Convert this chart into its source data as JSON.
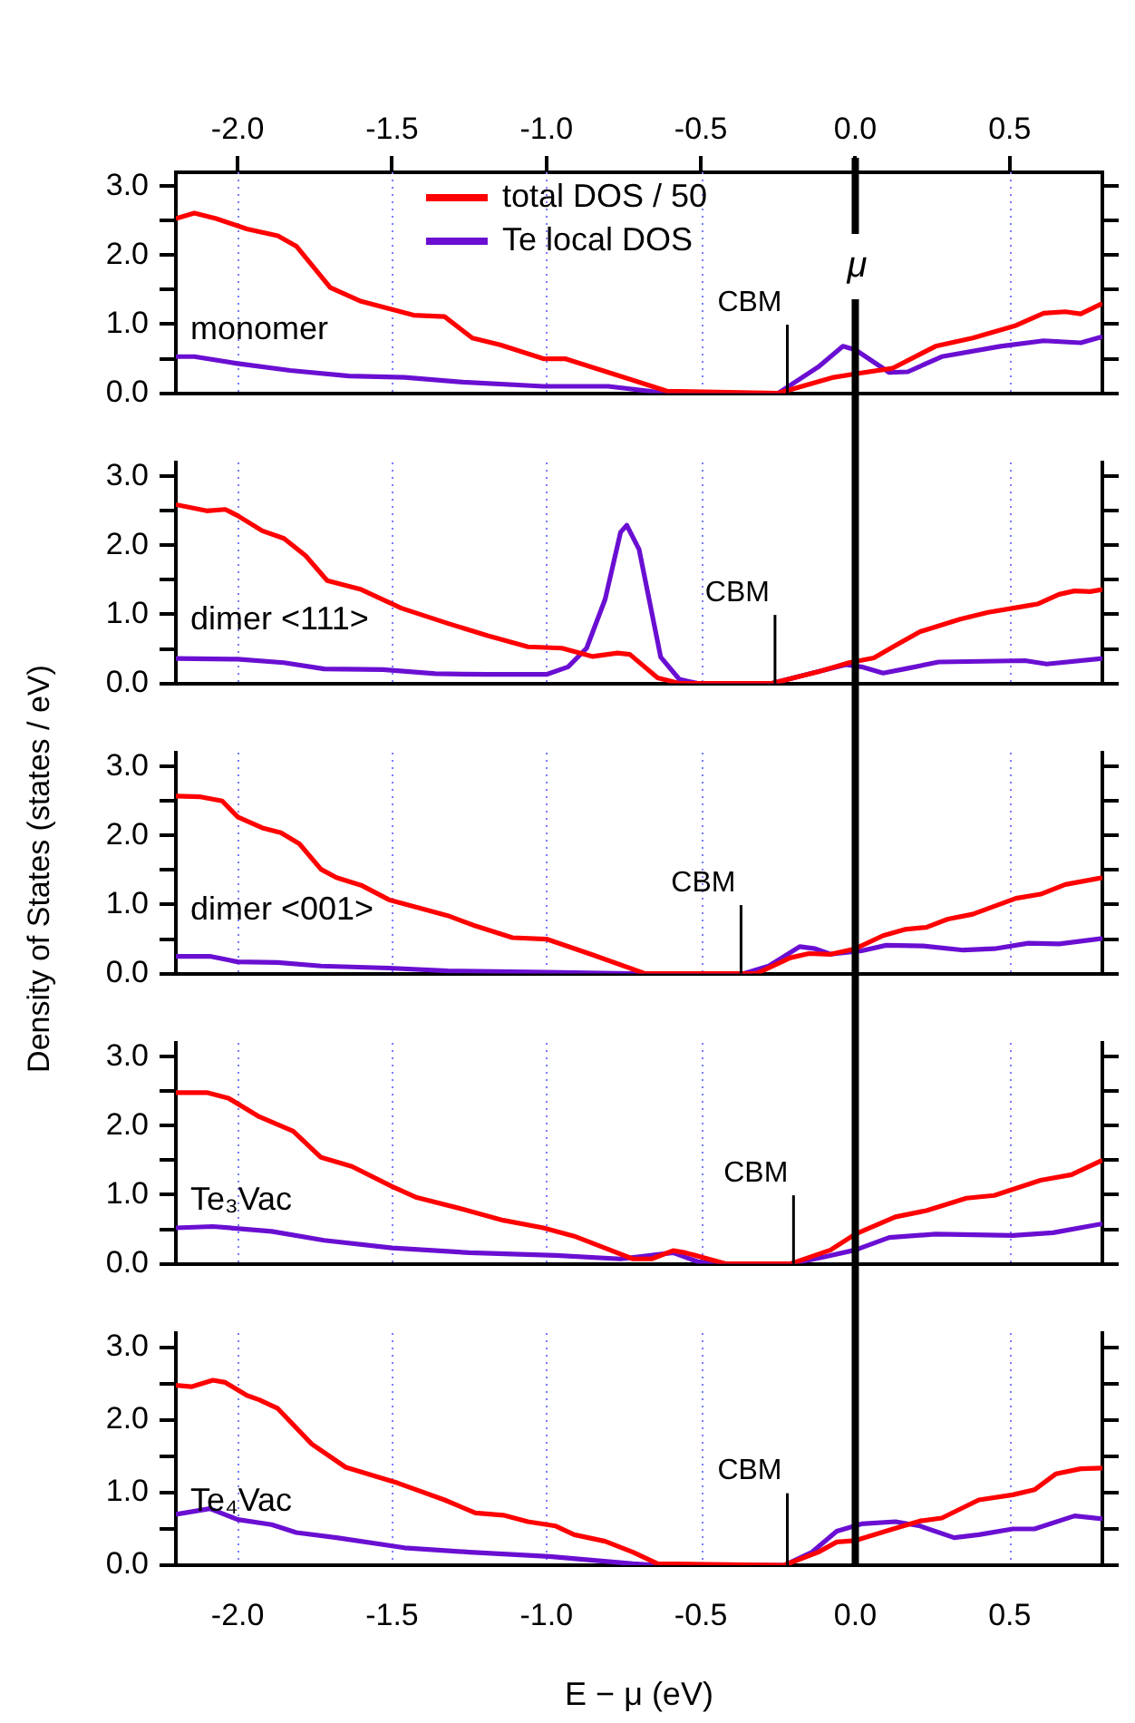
{
  "chart_data": [
    {
      "type": "line",
      "title": "monomer",
      "legend": "top",
      "grid": "x",
      "tick_labels": "y",
      "xlim": [
        -2.2,
        0.8
      ],
      "xticks": [
        {
          "value": -2,
          "label": null
        },
        {
          "value": -1.5,
          "label": null
        },
        {
          "value": -1,
          "label": null
        },
        {
          "value": -0.5,
          "label": null
        },
        {
          "value": 0,
          "label": null
        },
        {
          "value": 0.5,
          "label": null
        }
      ],
      "x2lim": [
        -2.2,
        0.8
      ],
      "x2ticks": [
        {
          "value": -2,
          "label": "-2.0"
        },
        {
          "value": -1.5,
          "label": "-1.5"
        },
        {
          "value": -1,
          "label": "-1.0"
        },
        {
          "value": -0.5,
          "label": "-0.5"
        },
        {
          "value": 0,
          "label": "0.0"
        },
        {
          "value": 0.5,
          "label": "0.5"
        }
      ],
      "ylim": [
        0,
        3.2
      ],
      "yticks": [
        {
          "value": 0,
          "label": "0.0"
        },
        {
          "value": 0.5,
          "label": null
        },
        {
          "value": 1,
          "label": "1.0"
        },
        {
          "value": 1.5,
          "label": null
        },
        {
          "value": 2,
          "label": "2.0"
        },
        {
          "value": 2.5,
          "label": null
        },
        {
          "value": 3,
          "label": "3.0"
        }
      ],
      "ref_lines": [
        {
          "axis": "x",
          "value": 0,
          "label": "μ",
          "color": "#000000"
        },
        {
          "axis": "x",
          "value": -0.22,
          "label": "CBM",
          "color": "#000000"
        }
      ],
      "series": [
        {
          "name": "total DOS / 50",
          "color": "#ff0000",
          "x": [
            -2.2,
            -2.14,
            -2.07,
            -1.97,
            -1.87,
            -1.81,
            -1.7,
            -1.6,
            -1.43,
            -1.33,
            -1.24,
            -1.15,
            -1.01,
            -0.94,
            -0.75,
            -0.61,
            -0.25,
            -0.07,
            0,
            0.12,
            0.26,
            0.38,
            0.52,
            0.61,
            0.68,
            0.73,
            0.8
          ],
          "values": [
            2.53,
            2.61,
            2.53,
            2.38,
            2.28,
            2.13,
            1.53,
            1.33,
            1.13,
            1.11,
            0.8,
            0.7,
            0.5,
            0.5,
            0.23,
            0.03,
            0,
            0.23,
            0.28,
            0.36,
            0.68,
            0.8,
            0.98,
            1.16,
            1.18,
            1.15,
            1.3
          ]
        },
        {
          "name": "Te local DOS",
          "color": "#6a0fd2",
          "x": [
            -2.2,
            -2.14,
            -2,
            -1.83,
            -1.64,
            -1.46,
            -1.27,
            -1.01,
            -0.8,
            -0.61,
            -0.25,
            -0.12,
            -0.04,
            0,
            0.11,
            0.17,
            0.28,
            0.47,
            0.61,
            0.73,
            0.8
          ],
          "values": [
            0.53,
            0.53,
            0.43,
            0.33,
            0.25,
            0.23,
            0.16,
            0.1,
            0.1,
            0,
            0,
            0.38,
            0.68,
            0.63,
            0.3,
            0.31,
            0.53,
            0.68,
            0.76,
            0.73,
            0.82
          ]
        }
      ]
    },
    {
      "type": "line",
      "title": "dimer <111>",
      "grid": "x",
      "tick_labels": "y",
      "xlim": [
        -2.2,
        0.8
      ],
      "xticks": [
        {
          "value": -2,
          "label": null
        },
        {
          "value": -1.5,
          "label": null
        },
        {
          "value": -1,
          "label": null
        },
        {
          "value": -0.5,
          "label": null
        },
        {
          "value": 0,
          "label": null
        },
        {
          "value": 0.5,
          "label": null
        }
      ],
      "ylim": [
        0,
        3.2
      ],
      "yticks": [
        {
          "value": 0,
          "label": "0.0"
        },
        {
          "value": 0.5,
          "label": null
        },
        {
          "value": 1,
          "label": "1.0"
        },
        {
          "value": 1.5,
          "label": null
        },
        {
          "value": 2,
          "label": "2.0"
        },
        {
          "value": 2.5,
          "label": null
        },
        {
          "value": 3,
          "label": "3.0"
        }
      ],
      "ref_lines": [
        {
          "axis": "x",
          "value": 0,
          "color": "#000000"
        },
        {
          "axis": "x",
          "value": -0.26,
          "label": "CBM",
          "color": "#000000"
        }
      ],
      "series": [
        {
          "color": "#ff0000",
          "x": [
            -2.2,
            -2.1,
            -2.04,
            -2,
            -1.92,
            -1.85,
            -1.78,
            -1.71,
            -1.6,
            -1.47,
            -1.32,
            -1.19,
            -1.06,
            -0.95,
            -0.85,
            -0.77,
            -0.73,
            -0.64,
            -0.57,
            -0.27,
            -0.12,
            -0.02,
            0.06,
            0.13,
            0.21,
            0.34,
            0.43,
            0.55,
            0.59,
            0.66,
            0.71,
            0.76,
            0.8
          ],
          "values": [
            2.59,
            2.5,
            2.52,
            2.43,
            2.21,
            2.1,
            1.85,
            1.49,
            1.36,
            1.09,
            0.87,
            0.69,
            0.53,
            0.51,
            0.39,
            0.44,
            0.42,
            0.08,
            0,
            0,
            0.17,
            0.3,
            0.37,
            0.55,
            0.75,
            0.93,
            1.03,
            1.12,
            1.15,
            1.29,
            1.34,
            1.33,
            1.36
          ]
        },
        {
          "color": "#6a0fd2",
          "x": [
            -2.2,
            -2,
            -1.85,
            -1.72,
            -1.53,
            -1.36,
            -1.19,
            -1,
            -0.93,
            -0.87,
            -0.81,
            -0.76,
            -0.74,
            -0.7,
            -0.63,
            -0.57,
            -0.51,
            -0.27,
            -0.14,
            -0.03,
            0.02,
            0.09,
            0.16,
            0.27,
            0.55,
            0.62,
            0.8
          ],
          "values": [
            0.36,
            0.35,
            0.3,
            0.21,
            0.2,
            0.14,
            0.13,
            0.13,
            0.24,
            0.51,
            1.22,
            2.19,
            2.29,
            1.94,
            0.38,
            0.06,
            0,
            0,
            0.15,
            0.27,
            0.24,
            0.15,
            0.21,
            0.31,
            0.33,
            0.28,
            0.36
          ]
        }
      ]
    },
    {
      "type": "line",
      "title": "dimer <001>",
      "ylabel": "Density of States (states / eV)",
      "grid": "x",
      "tick_labels": "y",
      "xlim": [
        -2.2,
        0.8
      ],
      "xticks": [
        {
          "value": -2,
          "label": null
        },
        {
          "value": -1.5,
          "label": null
        },
        {
          "value": -1,
          "label": null
        },
        {
          "value": -0.5,
          "label": null
        },
        {
          "value": 0,
          "label": null
        },
        {
          "value": 0.5,
          "label": null
        }
      ],
      "ylim": [
        0,
        3.2
      ],
      "yticks": [
        {
          "value": 0,
          "label": "0.0"
        },
        {
          "value": 0.5,
          "label": null
        },
        {
          "value": 1,
          "label": "1.0"
        },
        {
          "value": 1.5,
          "label": null
        },
        {
          "value": 2,
          "label": "2.0"
        },
        {
          "value": 2.5,
          "label": null
        },
        {
          "value": 3,
          "label": "3.0"
        }
      ],
      "ref_lines": [
        {
          "axis": "x",
          "value": 0,
          "color": "#000000"
        },
        {
          "axis": "x",
          "value": -0.37,
          "label": "CBM",
          "color": "#000000"
        }
      ],
      "series": [
        {
          "color": "#ff0000",
          "x": [
            -2.2,
            -2.12,
            -2.05,
            -2,
            -1.92,
            -1.86,
            -1.8,
            -1.73,
            -1.68,
            -1.6,
            -1.51,
            -1.42,
            -1.32,
            -1.23,
            -1.11,
            -1,
            -0.85,
            -0.68,
            -0.32,
            -0.21,
            -0.15,
            -0.08,
            0,
            0.09,
            0.16,
            0.23,
            0.3,
            0.38,
            0.52,
            0.6,
            0.68,
            0.8
          ],
          "values": [
            2.57,
            2.56,
            2.5,
            2.27,
            2.11,
            2.04,
            1.88,
            1.51,
            1.39,
            1.28,
            1.07,
            0.96,
            0.84,
            0.69,
            0.52,
            0.5,
            0.27,
            0,
            0,
            0.23,
            0.29,
            0.28,
            0.36,
            0.55,
            0.64,
            0.67,
            0.79,
            0.86,
            1.09,
            1.15,
            1.29,
            1.39
          ]
        },
        {
          "color": "#6a0fd2",
          "x": [
            -2.2,
            -2.09,
            -2,
            -1.87,
            -1.73,
            -1.51,
            -1.32,
            -1,
            -0.73,
            -0.36,
            -0.28,
            -0.18,
            -0.13,
            -0.08,
            0.02,
            0.1,
            0.22,
            0.35,
            0.45,
            0.56,
            0.66,
            0.8
          ],
          "values": [
            0.25,
            0.25,
            0.17,
            0.16,
            0.11,
            0.08,
            0.04,
            0.02,
            0,
            0,
            0.11,
            0.39,
            0.36,
            0.28,
            0.33,
            0.41,
            0.4,
            0.34,
            0.36,
            0.44,
            0.43,
            0.51
          ]
        }
      ]
    },
    {
      "type": "line",
      "title": "Te₃Vac",
      "grid": "x",
      "tick_labels": "y",
      "xlim": [
        -2.2,
        0.8
      ],
      "xticks": [
        {
          "value": -2,
          "label": null
        },
        {
          "value": -1.5,
          "label": null
        },
        {
          "value": -1,
          "label": null
        },
        {
          "value": -0.5,
          "label": null
        },
        {
          "value": 0,
          "label": null
        },
        {
          "value": 0.5,
          "label": null
        }
      ],
      "ylim": [
        0,
        3.2
      ],
      "yticks": [
        {
          "value": 0,
          "label": "0.0"
        },
        {
          "value": 0.5,
          "label": null
        },
        {
          "value": 1,
          "label": "1.0"
        },
        {
          "value": 1.5,
          "label": null
        },
        {
          "value": 2,
          "label": "2.0"
        },
        {
          "value": 2.5,
          "label": null
        },
        {
          "value": 3,
          "label": "3.0"
        }
      ],
      "ref_lines": [
        {
          "axis": "x",
          "value": 0,
          "color": "#000000"
        },
        {
          "axis": "x",
          "value": -0.2,
          "label": "CBM",
          "color": "#000000"
        }
      ],
      "series": [
        {
          "color": "#ff0000",
          "x": [
            -2.2,
            -2.1,
            -2.03,
            -1.93,
            -1.82,
            -1.73,
            -1.63,
            -1.5,
            -1.42,
            -1.27,
            -1.14,
            -1.01,
            -0.91,
            -0.8,
            -0.72,
            -0.66,
            -0.59,
            -0.55,
            -0.42,
            -0.21,
            -0.08,
            0,
            0.13,
            0.23,
            0.36,
            0.45,
            0.6,
            0.7,
            0.8
          ],
          "values": [
            2.48,
            2.48,
            2.4,
            2.13,
            1.92,
            1.54,
            1.41,
            1.12,
            0.96,
            0.79,
            0.63,
            0.52,
            0.4,
            0.21,
            0.07,
            0.07,
            0.19,
            0.16,
            0,
            0,
            0.2,
            0.43,
            0.68,
            0.77,
            0.95,
            0.99,
            1.21,
            1.29,
            1.5
          ]
        },
        {
          "color": "#6a0fd2",
          "x": [
            -2.2,
            -2.08,
            -1.89,
            -1.72,
            -1.5,
            -1.25,
            -0.97,
            -0.76,
            -0.59,
            -0.51,
            -0.42,
            -0.21,
            -0.11,
            0,
            0.11,
            0.26,
            0.51,
            0.64,
            0.8
          ],
          "values": [
            0.52,
            0.54,
            0.47,
            0.34,
            0.23,
            0.16,
            0.12,
            0.07,
            0.16,
            0.03,
            0,
            0,
            0.09,
            0.2,
            0.38,
            0.43,
            0.41,
            0.45,
            0.58
          ]
        }
      ]
    },
    {
      "type": "line",
      "title": "Te₄Vac",
      "xlabel": "E − μ (eV)",
      "grid": "x",
      "xlim": [
        -2.2,
        0.8
      ],
      "xticks": [
        {
          "value": -2,
          "label": "-2.0"
        },
        {
          "value": -1.5,
          "label": "-1.5"
        },
        {
          "value": -1,
          "label": "-1.0"
        },
        {
          "value": -0.5,
          "label": "-0.5"
        },
        {
          "value": 0,
          "label": "0.0"
        },
        {
          "value": 0.5,
          "label": "0.5"
        }
      ],
      "ylim": [
        0,
        3.2
      ],
      "yticks": [
        {
          "value": 0,
          "label": "0.0"
        },
        {
          "value": 0.5,
          "label": null
        },
        {
          "value": 1,
          "label": "1.0"
        },
        {
          "value": 1.5,
          "label": null
        },
        {
          "value": 2,
          "label": "2.0"
        },
        {
          "value": 2.5,
          "label": null
        },
        {
          "value": 3,
          "label": "3.0"
        }
      ],
      "ref_lines": [
        {
          "axis": "x",
          "value": 0,
          "color": "#000000"
        },
        {
          "axis": "x",
          "value": -0.22,
          "label": "CBM",
          "color": "#000000"
        }
      ],
      "series": [
        {
          "color": "#ff0000",
          "x": [
            -2.2,
            -2.15,
            -2.08,
            -2.04,
            -1.97,
            -1.93,
            -1.87,
            -1.76,
            -1.65,
            -1.48,
            -1.33,
            -1.23,
            -1.14,
            -1.06,
            -0.97,
            -0.91,
            -0.81,
            -0.72,
            -0.64,
            -0.23,
            -0.12,
            -0.06,
            0,
            0.13,
            0.21,
            0.28,
            0.4,
            0.51,
            0.58,
            0.65,
            0.73,
            0.8
          ],
          "values": [
            2.48,
            2.46,
            2.55,
            2.52,
            2.34,
            2.28,
            2.16,
            1.67,
            1.35,
            1.13,
            0.9,
            0.72,
            0.69,
            0.6,
            0.54,
            0.42,
            0.33,
            0.18,
            0.02,
            0,
            0.18,
            0.32,
            0.34,
            0.51,
            0.61,
            0.65,
            0.9,
            0.97,
            1.04,
            1.26,
            1.33,
            1.34
          ]
        },
        {
          "color": "#6a0fd2",
          "x": [
            -2.2,
            -2.09,
            -2,
            -1.89,
            -1.81,
            -1.68,
            -1.46,
            -1.25,
            -0.99,
            -0.72,
            -0.64,
            -0.23,
            -0.14,
            -0.06,
            0.02,
            0.13,
            0.21,
            0.32,
            0.4,
            0.51,
            0.58,
            0.71,
            0.8
          ],
          "values": [
            0.7,
            0.78,
            0.63,
            0.56,
            0.45,
            0.38,
            0.24,
            0.18,
            0.12,
            0.02,
            0,
            0,
            0.18,
            0.47,
            0.57,
            0.6,
            0.54,
            0.38,
            0.42,
            0.5,
            0.5,
            0.68,
            0.64
          ]
        }
      ]
    }
  ]
}
